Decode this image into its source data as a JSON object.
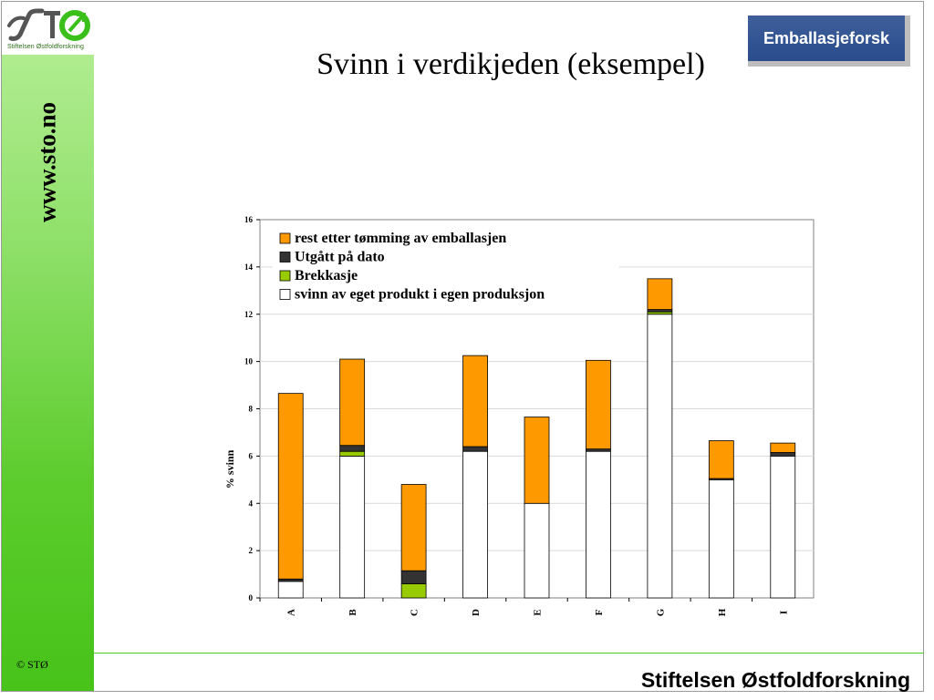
{
  "sidebar": {
    "logo_text": "Stiftelsen Østfoldforskning",
    "url": "www.sto.no",
    "copyright": "© STØ"
  },
  "header": {
    "title": "Svinn i verdikjeden (eksempel)",
    "brand": "Emballasjeforsk"
  },
  "footer": {
    "org_name": "Stiftelsen Østfoldforskning"
  },
  "colors": {
    "rest": "#ff9900",
    "utgatt": "#333333",
    "brekkasje": "#99cc00",
    "svinn": "#ffffff",
    "sidebar_green": "#5ccc2c"
  },
  "chart_data": {
    "type": "bar",
    "stacked": true,
    "categories": [
      "A",
      "B",
      "C",
      "D",
      "E",
      "F",
      "G",
      "H",
      "I"
    ],
    "series": [
      {
        "name": "svinn av eget produkt i egen produksjon",
        "color": "#ffffff",
        "values": [
          0.7,
          6.0,
          0.0,
          6.2,
          4.0,
          6.2,
          12.0,
          5.0,
          6.0
        ]
      },
      {
        "name": "Brekkasje",
        "color": "#99cc00",
        "values": [
          0.0,
          0.2,
          0.6,
          0.0,
          0.0,
          0.0,
          0.1,
          0.0,
          0.0
        ]
      },
      {
        "name": "Utgått på dato",
        "color": "#333333",
        "values": [
          0.1,
          0.25,
          0.55,
          0.2,
          0.0,
          0.1,
          0.1,
          0.05,
          0.15
        ]
      },
      {
        "name": "rest etter tømming av emballasjen",
        "color": "#ff9900",
        "values": [
          7.85,
          3.65,
          3.65,
          3.85,
          3.65,
          3.75,
          1.3,
          1.6,
          0.4
        ]
      }
    ],
    "legend_order": [
      "rest etter tømming av emballasjen",
      "Utgått på dato",
      "Brekkasje",
      "svinn av eget produkt i egen produksjon"
    ],
    "title": "",
    "xlabel": "",
    "ylabel": "% svinn",
    "ylim": [
      0,
      16
    ],
    "yticks": [
      0,
      2,
      4,
      6,
      8,
      10,
      12,
      14,
      16
    ],
    "grid": true,
    "legend_position": "top-left"
  }
}
